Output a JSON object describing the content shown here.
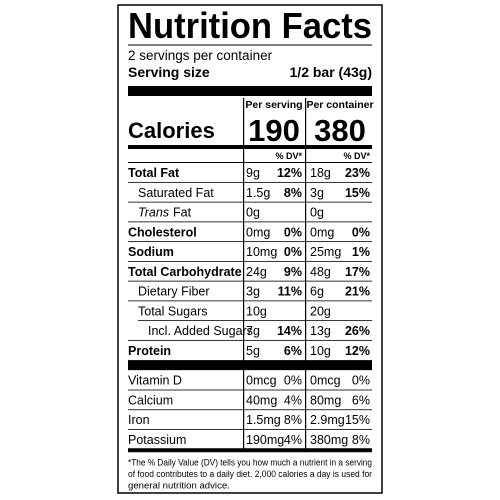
{
  "title": "Nutrition Facts",
  "servings": "2 servings per container",
  "serving_size": {
    "label": "Serving size",
    "value": "1/2 bar (43g)"
  },
  "columns": [
    "Per serving",
    "Per container"
  ],
  "calories": {
    "label": "Calories",
    "values": [
      "190",
      "380"
    ]
  },
  "dv_header": "% DV*",
  "nutrients": [
    {
      "name": "Total Fat",
      "bold": true,
      "indent": 0,
      "serving": [
        "9g",
        "12%"
      ],
      "container": [
        "18g",
        "23%"
      ]
    },
    {
      "name": "Saturated Fat",
      "bold": false,
      "indent": 1,
      "serving": [
        "1.5g",
        "8%"
      ],
      "container": [
        "3g",
        "15%"
      ]
    },
    {
      "italic_prefix": "Trans",
      "name": "Fat",
      "bold": false,
      "indent": 1,
      "serving": [
        "0g"
      ],
      "container": [
        "0g"
      ]
    },
    {
      "name": "Cholesterol",
      "bold": true,
      "indent": 0,
      "serving": [
        "0mg",
        "0%"
      ],
      "container": [
        "0mg",
        "0%"
      ]
    },
    {
      "name": "Sodium",
      "bold": true,
      "indent": 0,
      "serving": [
        "10mg",
        "0%"
      ],
      "container": [
        "25mg",
        "1%"
      ]
    },
    {
      "name": "Total Carbohydrate",
      "bold": true,
      "indent": 0,
      "serving": [
        "24g",
        "9%"
      ],
      "container": [
        "48g",
        "17%"
      ]
    },
    {
      "name": "Dietary Fiber",
      "bold": false,
      "indent": 1,
      "serving": [
        "3g",
        "11%"
      ],
      "container": [
        "6g",
        "21%"
      ]
    },
    {
      "name": "Total Sugars",
      "bold": false,
      "indent": 1,
      "serving": [
        "10g"
      ],
      "container": [
        "20g"
      ]
    },
    {
      "name": "Incl. Added Sugars",
      "bold": false,
      "indent": 2,
      "serving": [
        "7g",
        "14%"
      ],
      "container": [
        "13g",
        "26%"
      ]
    },
    {
      "name": "Protein",
      "bold": true,
      "indent": 0,
      "serving": [
        "5g",
        "6%"
      ],
      "container": [
        "10g",
        "12%"
      ]
    }
  ],
  "vitamins": [
    {
      "name": "Vitamin D",
      "serving": [
        "0mcg",
        "0%"
      ],
      "container": [
        "0mcg",
        "0%"
      ]
    },
    {
      "name": "Calcium",
      "serving": [
        "40mg",
        "4%"
      ],
      "container": [
        "80mg",
        "6%"
      ]
    },
    {
      "name": "Iron",
      "serving": [
        "1.5mg",
        "8%"
      ],
      "container": [
        "2.9mg",
        "15%"
      ]
    },
    {
      "name": "Potassium",
      "serving": [
        "190mg",
        "4%"
      ],
      "container": [
        "380mg",
        "8%"
      ]
    }
  ],
  "footnote": [
    "*The % Daily Value (DV) tells you how much a nutrient in a serving",
    "of food contributes to a daily diet. 2,000 calories a day is used for",
    "general nutrition advice."
  ]
}
